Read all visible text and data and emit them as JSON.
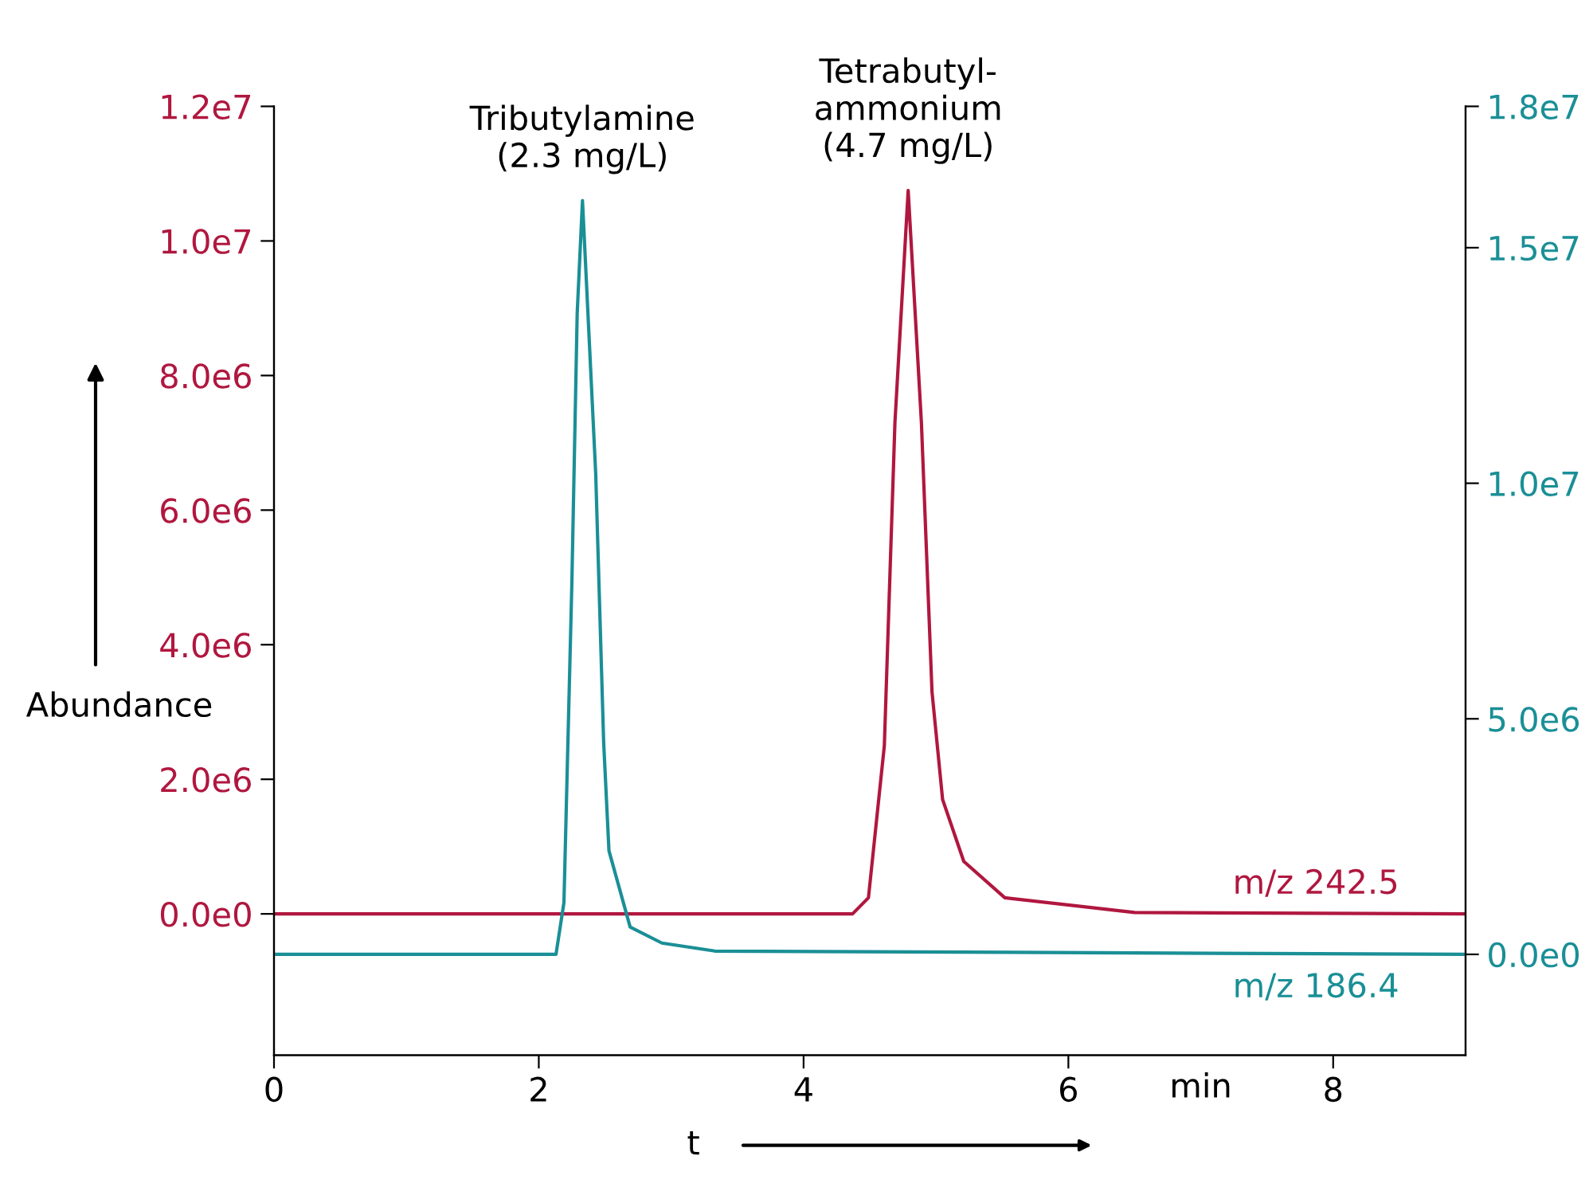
{
  "chart_data": {
    "type": "line",
    "xlabel": "t",
    "ylabel": "Abundance",
    "xlim": [
      0,
      9
    ],
    "xticks": [
      0,
      2,
      4,
      6,
      8
    ],
    "ylim": [
      -2100000.0,
      12000000.0
    ],
    "yticks": [
      {
        "value": 0,
        "label": "0.0e0"
      },
      {
        "value": 2000000.0,
        "label": "2.0e6"
      },
      {
        "value": 4000000.0,
        "label": "4.0e6"
      },
      {
        "value": 6000000.0,
        "label": "6.0e6"
      },
      {
        "value": 8000000.0,
        "label": "8.0e6"
      },
      {
        "value": 10000000.0,
        "label": "1.0e7"
      },
      {
        "value": 12000000.0,
        "label": "1.2e7"
      }
    ],
    "y2lim": [
      -2140000.0,
      18000000.0
    ],
    "y2ticks": [
      {
        "value": 0,
        "label": "0.0e0"
      },
      {
        "value": 5000000.0,
        "label": "5.0e6"
      },
      {
        "value": 10000000.0,
        "label": "1.0e7"
      },
      {
        "value": 15000000.0,
        "label": "1.5e7"
      },
      {
        "value": 18000000.0,
        "label": "1.8e7"
      }
    ],
    "grid": false,
    "legend": false,
    "marker": "none",
    "line_style": "solid",
    "series": [
      {
        "name": "m/z 242.5",
        "color": "#b0173f",
        "x": [
          0,
          4.37,
          4.49,
          4.61,
          4.69,
          4.79,
          4.89,
          4.97,
          5.05,
          5.21,
          5.52,
          6.5,
          9
        ],
        "values": [
          0,
          0,
          240000.0,
          2500000.0,
          7300000.0,
          10750000.0,
          7300000.0,
          3300000.0,
          1700000.0,
          780000.0,
          240000.0,
          20000.0,
          0
        ]
      },
      {
        "name": "m/z 186.4",
        "color": "#1a8f96",
        "axis": "y2",
        "x": [
          0,
          2.13,
          2.19,
          2.25,
          2.29,
          2.33,
          2.43,
          2.49,
          2.53,
          2.69,
          2.93,
          3.33,
          9
        ],
        "values": [
          0,
          0,
          1100000.0,
          7900000.0,
          13600000.0,
          16000000.0,
          10200000.0,
          4500000.0,
          2200000.0,
          580000.0,
          240000.0,
          70000.0,
          0
        ]
      }
    ],
    "annotations": [
      {
        "text": "Tributylamine\n(2.3 mg/L)",
        "x": 2.33,
        "y": 10600000.0
      },
      {
        "text": "Tetrabutyl-\nammonium\n(4.7 mg/L)",
        "x": 4.79,
        "y": 10750000.0
      },
      "min"
    ]
  }
}
